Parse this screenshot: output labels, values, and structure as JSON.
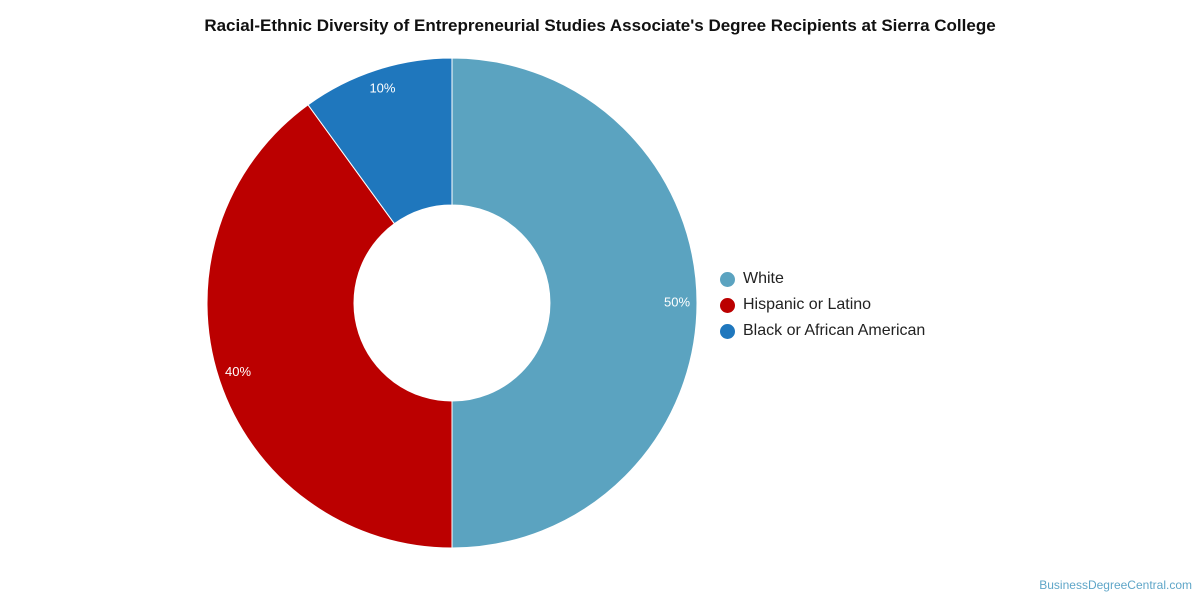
{
  "chart_data": {
    "type": "pie",
    "title": "Racial-Ethnic Diversity of Entrepreneurial Studies Associate's Degree Recipients at Sierra College",
    "donut": true,
    "legend_position": "right",
    "slices": [
      {
        "name": "White",
        "value": 50,
        "label": "50%",
        "color": "#5ba3c0"
      },
      {
        "name": "Hispanic or Latino",
        "value": 40,
        "label": "40%",
        "color": "#bb0000"
      },
      {
        "name": "Black or African American",
        "value": 10,
        "label": "10%",
        "color": "#1f77bd"
      }
    ]
  },
  "watermark": "BusinessDegreeCentral.com"
}
